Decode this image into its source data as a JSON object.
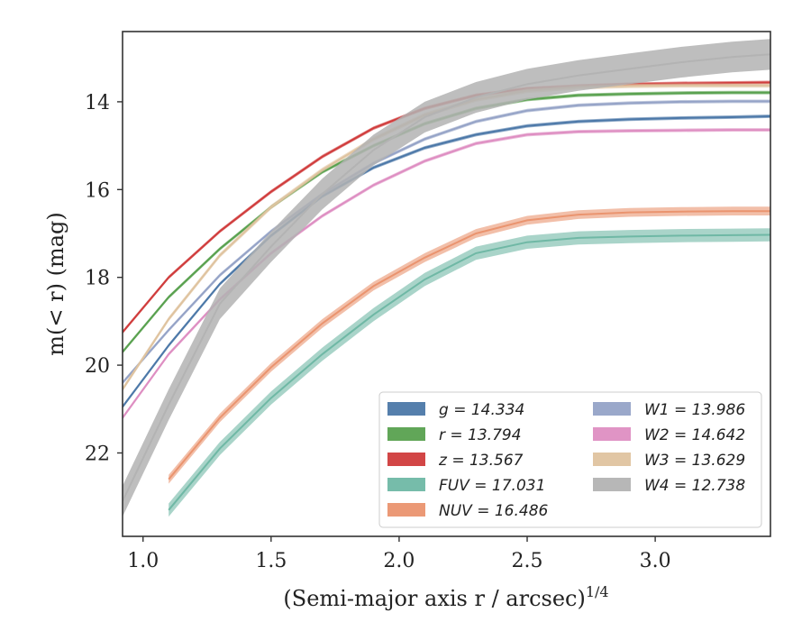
{
  "chart_data": {
    "type": "line",
    "xlabel": "(Semi-major axis r / arcsec)",
    "xlabel_sup": "1/4",
    "ylabel": "m(< r) (mag)",
    "xlim": [
      0.92,
      3.45
    ],
    "ylim": [
      23.9,
      12.4
    ],
    "y_inverted": true,
    "grid": false,
    "legend_position": "lower-right",
    "legend_columns": 2,
    "x_ticks": [
      "1.0",
      "1.5",
      "2.0",
      "2.5",
      "3.0"
    ],
    "y_ticks": [
      "14",
      "16",
      "18",
      "20",
      "22"
    ],
    "x_tick_values": [
      1.0,
      1.5,
      2.0,
      2.5,
      3.0
    ],
    "y_tick_values": [
      14,
      16,
      18,
      20,
      22
    ],
    "series": [
      {
        "name": "g = 14.334",
        "band": "g",
        "total": "14.334",
        "color": "#4c78a8",
        "err": 0.04,
        "x": [
          0.92,
          1.1,
          1.3,
          1.5,
          1.7,
          1.9,
          2.1,
          2.3,
          2.5,
          2.7,
          2.9,
          3.1,
          3.3,
          3.45
        ],
        "y": [
          20.95,
          19.55,
          18.15,
          17.05,
          16.15,
          15.5,
          15.05,
          14.75,
          14.55,
          14.45,
          14.4,
          14.37,
          14.35,
          14.33
        ]
      },
      {
        "name": "r = 13.794",
        "band": "r",
        "total": "13.794",
        "color": "#59a14f",
        "err": 0.04,
        "x": [
          0.92,
          1.1,
          1.3,
          1.5,
          1.7,
          1.9,
          2.1,
          2.3,
          2.5,
          2.7,
          2.9,
          3.1,
          3.3,
          3.45
        ],
        "y": [
          19.7,
          18.45,
          17.35,
          16.4,
          15.6,
          15.0,
          14.5,
          14.15,
          13.95,
          13.85,
          13.82,
          13.8,
          13.79,
          13.79
        ]
      },
      {
        "name": "z = 13.567",
        "band": "z",
        "total": "13.567",
        "color": "#d03c3c",
        "err": 0.04,
        "x": [
          0.92,
          1.1,
          1.3,
          1.5,
          1.7,
          1.9,
          2.1,
          2.3,
          2.5,
          2.7,
          2.9,
          3.1,
          3.3,
          3.45
        ],
        "y": [
          19.25,
          18.0,
          16.95,
          16.05,
          15.25,
          14.6,
          14.15,
          13.85,
          13.7,
          13.64,
          13.6,
          13.58,
          13.57,
          13.56
        ]
      },
      {
        "name": "FUV = 17.031",
        "band": "FUV",
        "total": "17.031",
        "color": "#6fb8a5",
        "err": 0.15,
        "x": [
          1.1,
          1.3,
          1.5,
          1.7,
          1.9,
          2.1,
          2.3,
          2.5,
          2.7,
          2.9,
          3.1,
          3.3,
          3.45
        ],
        "y": [
          23.3,
          21.9,
          20.75,
          19.75,
          18.85,
          18.05,
          17.45,
          17.2,
          17.1,
          17.07,
          17.05,
          17.04,
          17.03
        ]
      },
      {
        "name": "NUV = 16.486",
        "band": "NUV",
        "total": "16.486",
        "color": "#ea946f",
        "err": 0.1,
        "x": [
          1.1,
          1.3,
          1.5,
          1.7,
          1.9,
          2.1,
          2.3,
          2.5,
          2.7,
          2.9,
          3.1,
          3.3,
          3.45
        ],
        "y": [
          22.6,
          21.2,
          20.05,
          19.05,
          18.2,
          17.55,
          17.0,
          16.7,
          16.57,
          16.52,
          16.5,
          16.49,
          16.49
        ]
      },
      {
        "name": "W1 = 13.986",
        "band": "W1",
        "total": "13.986",
        "color": "#95a3c7",
        "err": 0.04,
        "x": [
          0.92,
          1.1,
          1.3,
          1.5,
          1.7,
          1.9,
          2.1,
          2.3,
          2.5,
          2.7,
          2.9,
          3.1,
          3.3,
          3.45
        ],
        "y": [
          20.4,
          19.2,
          17.95,
          16.95,
          16.1,
          15.4,
          14.85,
          14.45,
          14.2,
          14.08,
          14.03,
          14.0,
          13.99,
          13.99
        ]
      },
      {
        "name": "W2 = 14.642",
        "band": "W2",
        "total": "14.642",
        "color": "#de8ec2",
        "err": 0.04,
        "x": [
          0.92,
          1.1,
          1.3,
          1.5,
          1.7,
          1.9,
          2.1,
          2.3,
          2.5,
          2.7,
          2.9,
          3.1,
          3.3,
          3.45
        ],
        "y": [
          21.2,
          19.75,
          18.5,
          17.45,
          16.6,
          15.9,
          15.35,
          14.95,
          14.75,
          14.68,
          14.66,
          14.65,
          14.64,
          14.64
        ]
      },
      {
        "name": "W3 = 13.629",
        "band": "W3",
        "total": "13.629",
        "color": "#dfc39f",
        "err": 0.05,
        "x": [
          0.92,
          1.1,
          1.3,
          1.5,
          1.7,
          1.9,
          2.1,
          2.3,
          2.5,
          2.7,
          2.9,
          3.1,
          3.3,
          3.45
        ],
        "y": [
          20.55,
          18.95,
          17.5,
          16.4,
          15.55,
          14.85,
          14.3,
          13.95,
          13.75,
          13.67,
          13.64,
          13.63,
          13.63,
          13.63
        ]
      },
      {
        "name": "W4 = 12.738",
        "band": "W4",
        "total": "12.738",
        "color": "#b3b3b3",
        "err": 0.35,
        "x": [
          0.92,
          1.1,
          1.3,
          1.5,
          1.7,
          1.9,
          2.1,
          2.3,
          2.5,
          2.7,
          2.9,
          3.1,
          3.3,
          3.45
        ],
        "y": [
          23.1,
          20.9,
          18.6,
          17.3,
          16.1,
          15.1,
          14.35,
          13.9,
          13.6,
          13.4,
          13.25,
          13.1,
          12.98,
          12.92
        ]
      }
    ]
  }
}
